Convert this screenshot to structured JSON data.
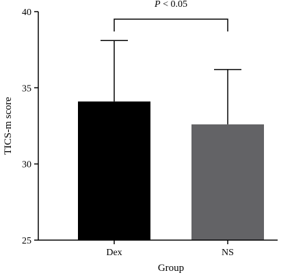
{
  "chart_data": {
    "type": "bar",
    "categories": [
      "Dex",
      "NS"
    ],
    "values": [
      34.1,
      32.6
    ],
    "error_upper": [
      38.1,
      36.2
    ],
    "ylim": [
      25,
      40
    ],
    "yticks": [
      25,
      30,
      35,
      40
    ],
    "xlabel": "Group",
    "ylabel": "TICS-m score",
    "bar_colors": [
      "#000000",
      "#636366"
    ],
    "significance": {
      "between": [
        "Dex",
        "NS"
      ],
      "label_prefix": "P",
      "label_rest": " < 0.05"
    },
    "grid": false,
    "legend": "none"
  }
}
